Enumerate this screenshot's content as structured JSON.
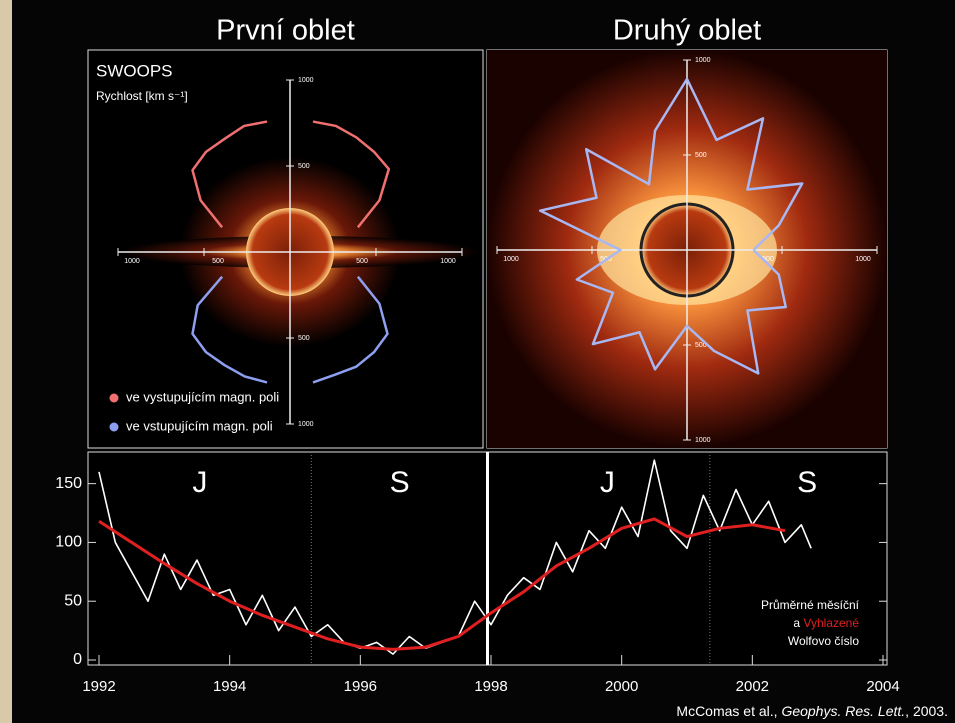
{
  "chart_data": [
    {
      "type": "polar",
      "title": "První oblet",
      "label": "SWOOPS",
      "subtitle": "Rychlost [km s⁻¹]",
      "rlim": [
        0,
        1000
      ],
      "rticks": [
        500,
        1000
      ],
      "series": [
        {
          "name": "ve vystupujícím magn. poli",
          "color": "#f07070",
          "theta": [
            20,
            30,
            40,
            50,
            60,
            70,
            80,
            90,
            100,
            110,
            120,
            130,
            140,
            150,
            160
          ],
          "values": [
            420,
            600,
            750,
            760,
            770,
            780,
            770,
            null,
            770,
            780,
            760,
            760,
            740,
            600,
            420
          ]
        },
        {
          "name": "ve vstupujícím magn. poli",
          "color": "#8f9ff0",
          "theta": [
            200,
            210,
            220,
            230,
            240,
            250,
            260,
            270,
            280,
            290,
            300,
            310,
            320,
            330,
            340
          ],
          "values": [
            420,
            620,
            740,
            760,
            760,
            770,
            770,
            null,
            770,
            760,
            770,
            760,
            740,
            600,
            420
          ]
        }
      ]
    },
    {
      "type": "polar",
      "title": "Druhý oblet",
      "rlim": [
        0,
        1000
      ],
      "rticks": [
        500,
        1000
      ],
      "series": [
        {
          "color": "#a8b8f4",
          "theta": [
            0,
            15,
            30,
            45,
            60,
            75,
            90,
            105,
            120,
            135,
            150,
            165,
            180,
            195,
            210,
            225,
            240,
            255,
            270,
            285,
            300,
            315,
            330,
            345,
            360
          ],
          "values": [
            350,
            500,
            700,
            450,
            800,
            600,
            900,
            650,
            400,
            750,
            550,
            800,
            350,
            600,
            450,
            700,
            500,
            650,
            400,
            550,
            750,
            450,
            600,
            500,
            350
          ]
        }
      ]
    },
    {
      "type": "line",
      "xlim": [
        1992,
        2004
      ],
      "xticks": [
        1992,
        1994,
        1996,
        1998,
        2000,
        2002,
        2004
      ],
      "ylim": [
        0,
        165
      ],
      "yticks": [
        0,
        50,
        100,
        150
      ],
      "region_labels": [
        "J",
        "S",
        "J",
        "S"
      ],
      "markers": [
        1995.25,
        2001.35
      ],
      "legend_text": {
        "joiner": "a",
        "suffix": "Wolfovo číslo"
      },
      "series": [
        {
          "name": "Průměrné měsíční",
          "color": "#ffffff",
          "x": [
            1992.0,
            1992.25,
            1992.5,
            1992.75,
            1993.0,
            1993.25,
            1993.5,
            1993.75,
            1994.0,
            1994.25,
            1994.5,
            1994.75,
            1995.0,
            1995.25,
            1995.5,
            1995.75,
            1996.0,
            1996.25,
            1996.5,
            1996.75,
            1997.0,
            1997.25,
            1997.5,
            1997.75,
            1998.0,
            1998.25,
            1998.5,
            1998.75,
            1999.0,
            1999.25,
            1999.5,
            1999.75,
            2000.0,
            2000.25,
            2000.5,
            2000.75,
            2001.0,
            2001.25,
            2001.5,
            2001.75,
            2002.0,
            2002.25,
            2002.5,
            2002.75,
            2002.9
          ],
          "values": [
            160,
            100,
            75,
            50,
            90,
            60,
            85,
            55,
            60,
            30,
            55,
            25,
            45,
            20,
            30,
            15,
            10,
            15,
            5,
            20,
            10,
            15,
            20,
            50,
            30,
            55,
            70,
            60,
            100,
            75,
            110,
            95,
            130,
            105,
            170,
            110,
            95,
            140,
            110,
            145,
            115,
            135,
            100,
            115,
            95
          ]
        },
        {
          "name": "Vyhlazené",
          "color": "#e02020",
          "x": [
            1992.0,
            1992.5,
            1993.0,
            1993.5,
            1994.0,
            1994.5,
            1995.0,
            1995.5,
            1996.0,
            1996.5,
            1997.0,
            1997.5,
            1998.0,
            1998.5,
            1999.0,
            1999.5,
            2000.0,
            2000.5,
            2001.0,
            2001.5,
            2002.0,
            2002.5
          ],
          "values": [
            118,
            100,
            82,
            65,
            50,
            38,
            28,
            18,
            11,
            9,
            11,
            20,
            40,
            58,
            80,
            95,
            112,
            120,
            105,
            112,
            115,
            110
          ]
        }
      ]
    }
  ],
  "source": {
    "prefix": "McComas et al., ",
    "journal": "Geophys. Res. Lett.",
    "suffix": ", 2003."
  }
}
